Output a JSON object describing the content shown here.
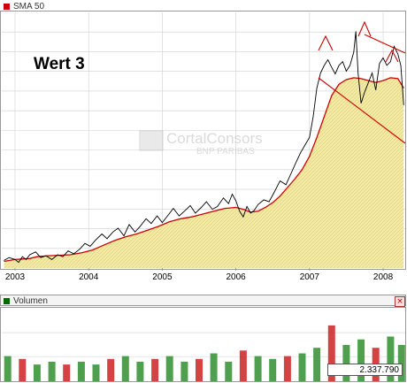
{
  "price_panel": {
    "legend_label": "SMA 50",
    "legend_color": "#cc0000",
    "watermark_title": "CortalConsors",
    "watermark_subtitle": "BNP PARIBAS",
    "annotation": "Wert 3"
  },
  "volume_panel": {
    "legend_label": "Volumen",
    "legend_color": "#006600",
    "close_label": "×",
    "current_volume": "2.337.790"
  },
  "colors": {
    "price_line": "#000000",
    "sma_line": "#cc0000",
    "area_fill": "#f2eaa6",
    "area_hatch": "#e0d47a",
    "grid": "#cfcfcf",
    "trend_lines": "#cc0000",
    "volume_up": "#2f8f2f",
    "volume_down": "#cc2222"
  },
  "chart_data": [
    {
      "type": "line",
      "title": "",
      "x_tick_labels": [
        "2003",
        "2004",
        "2005",
        "2006",
        "2007",
        "2008"
      ],
      "x_tick_years": [
        2003.0,
        2004.0,
        2005.0,
        2006.0,
        2007.0,
        2008.0
      ],
      "grid": true,
      "y_axis_labels_shown": false,
      "series": [
        {
          "name": "SMA 50",
          "x": [
            2002.85,
            2003.0,
            2003.1,
            2003.2,
            2003.3,
            2003.45,
            2003.6,
            2003.75,
            2003.9,
            2004.05,
            2004.2,
            2004.35,
            2004.5,
            2004.65,
            2004.8,
            2004.95,
            2005.1,
            2005.25,
            2005.4,
            2005.55,
            2005.7,
            2005.85,
            2006.0,
            2006.1,
            2006.2,
            2006.3,
            2006.4,
            2006.5,
            2006.6,
            2006.7,
            2006.8,
            2006.9,
            2007.0,
            2007.1,
            2007.2,
            2007.3,
            2007.4,
            2007.5,
            2007.6,
            2007.7,
            2007.8,
            2007.9,
            2008.0,
            2008.1,
            2008.2,
            2008.28
          ],
          "values": [
            7,
            9,
            9.5,
            10,
            12,
            13,
            13.5,
            14,
            16,
            19,
            24,
            29,
            33,
            36,
            40,
            44,
            49,
            52,
            54,
            57,
            60,
            63,
            64,
            62,
            59,
            60,
            64,
            69,
            76,
            85,
            94,
            104,
            118,
            138,
            160,
            182,
            194,
            199,
            201,
            200,
            198,
            196,
            198,
            201,
            200,
            190
          ]
        },
        {
          "name": "",
          "x": [
            2002.85,
            2002.92,
            2003.0,
            2003.05,
            2003.1,
            2003.15,
            2003.2,
            2003.28,
            2003.35,
            2003.42,
            2003.5,
            2003.58,
            2003.65,
            2003.72,
            2003.8,
            2003.88,
            2003.95,
            2004.02,
            2004.1,
            2004.18,
            2004.25,
            2004.33,
            2004.4,
            2004.48,
            2004.55,
            2004.63,
            2004.7,
            2004.78,
            2004.85,
            2004.93,
            2005.0,
            2005.08,
            2005.15,
            2005.23,
            2005.3,
            2005.38,
            2005.45,
            2005.53,
            2005.6,
            2005.68,
            2005.75,
            2005.83,
            2005.9,
            2005.95,
            2006.0,
            2006.05,
            2006.1,
            2006.15,
            2006.2,
            2006.25,
            2006.3,
            2006.38,
            2006.45,
            2006.52,
            2006.6,
            2006.68,
            2006.75,
            2006.82,
            2006.88,
            2006.94,
            2007.0,
            2007.05,
            2007.1,
            2007.15,
            2007.2,
            2007.25,
            2007.3,
            2007.35,
            2007.4,
            2007.45,
            2007.5,
            2007.55,
            2007.6,
            2007.63,
            2007.66,
            2007.7,
            2007.75,
            2007.8,
            2007.85,
            2007.9,
            2007.95,
            2008.0,
            2008.05,
            2008.1,
            2008.15,
            2008.2,
            2008.24,
            2008.28
          ],
          "values": [
            8,
            11,
            9,
            6,
            12,
            9,
            14,
            17,
            11,
            13,
            9,
            14,
            12,
            18,
            15,
            20,
            26,
            23,
            30,
            36,
            31,
            38,
            42,
            34,
            46,
            38,
            44,
            52,
            47,
            55,
            48,
            56,
            63,
            55,
            60,
            66,
            58,
            64,
            70,
            62,
            65,
            74,
            68,
            78,
            71,
            60,
            54,
            65,
            58,
            61,
            67,
            72,
            70,
            80,
            92,
            88,
            100,
            112,
            122,
            130,
            138,
            160,
            190,
            206,
            214,
            220,
            212,
            205,
            214,
            218,
            208,
            214,
            228,
            250,
            206,
            174,
            186,
            196,
            206,
            188,
            216,
            222,
            214,
            218,
            234,
            226,
            214,
            172
          ]
        }
      ]
    },
    {
      "type": "bar",
      "title": "",
      "x_tick_labels": [],
      "y_axis_labels_shown": false,
      "grid": true,
      "series": [
        {
          "name": "Volumen",
          "x": [
            2002.9,
            2003.1,
            2003.3,
            2003.5,
            2003.7,
            2003.9,
            2004.1,
            2004.3,
            2004.5,
            2004.7,
            2004.9,
            2005.1,
            2005.3,
            2005.5,
            2005.7,
            2005.9,
            2006.1,
            2006.3,
            2006.5,
            2006.7,
            2006.9,
            2007.1,
            2007.3,
            2007.5,
            2007.7,
            2007.9,
            2008.1,
            2008.25
          ],
          "values": [
            0.9,
            0.8,
            0.6,
            0.7,
            0.6,
            0.7,
            0.6,
            0.8,
            0.9,
            0.7,
            0.8,
            0.9,
            0.7,
            0.8,
            1.0,
            0.7,
            1.1,
            0.9,
            0.8,
            0.9,
            1.0,
            1.2,
            2.0,
            1.3,
            1.5,
            1.2,
            1.6,
            1.3
          ]
        }
      ]
    }
  ]
}
